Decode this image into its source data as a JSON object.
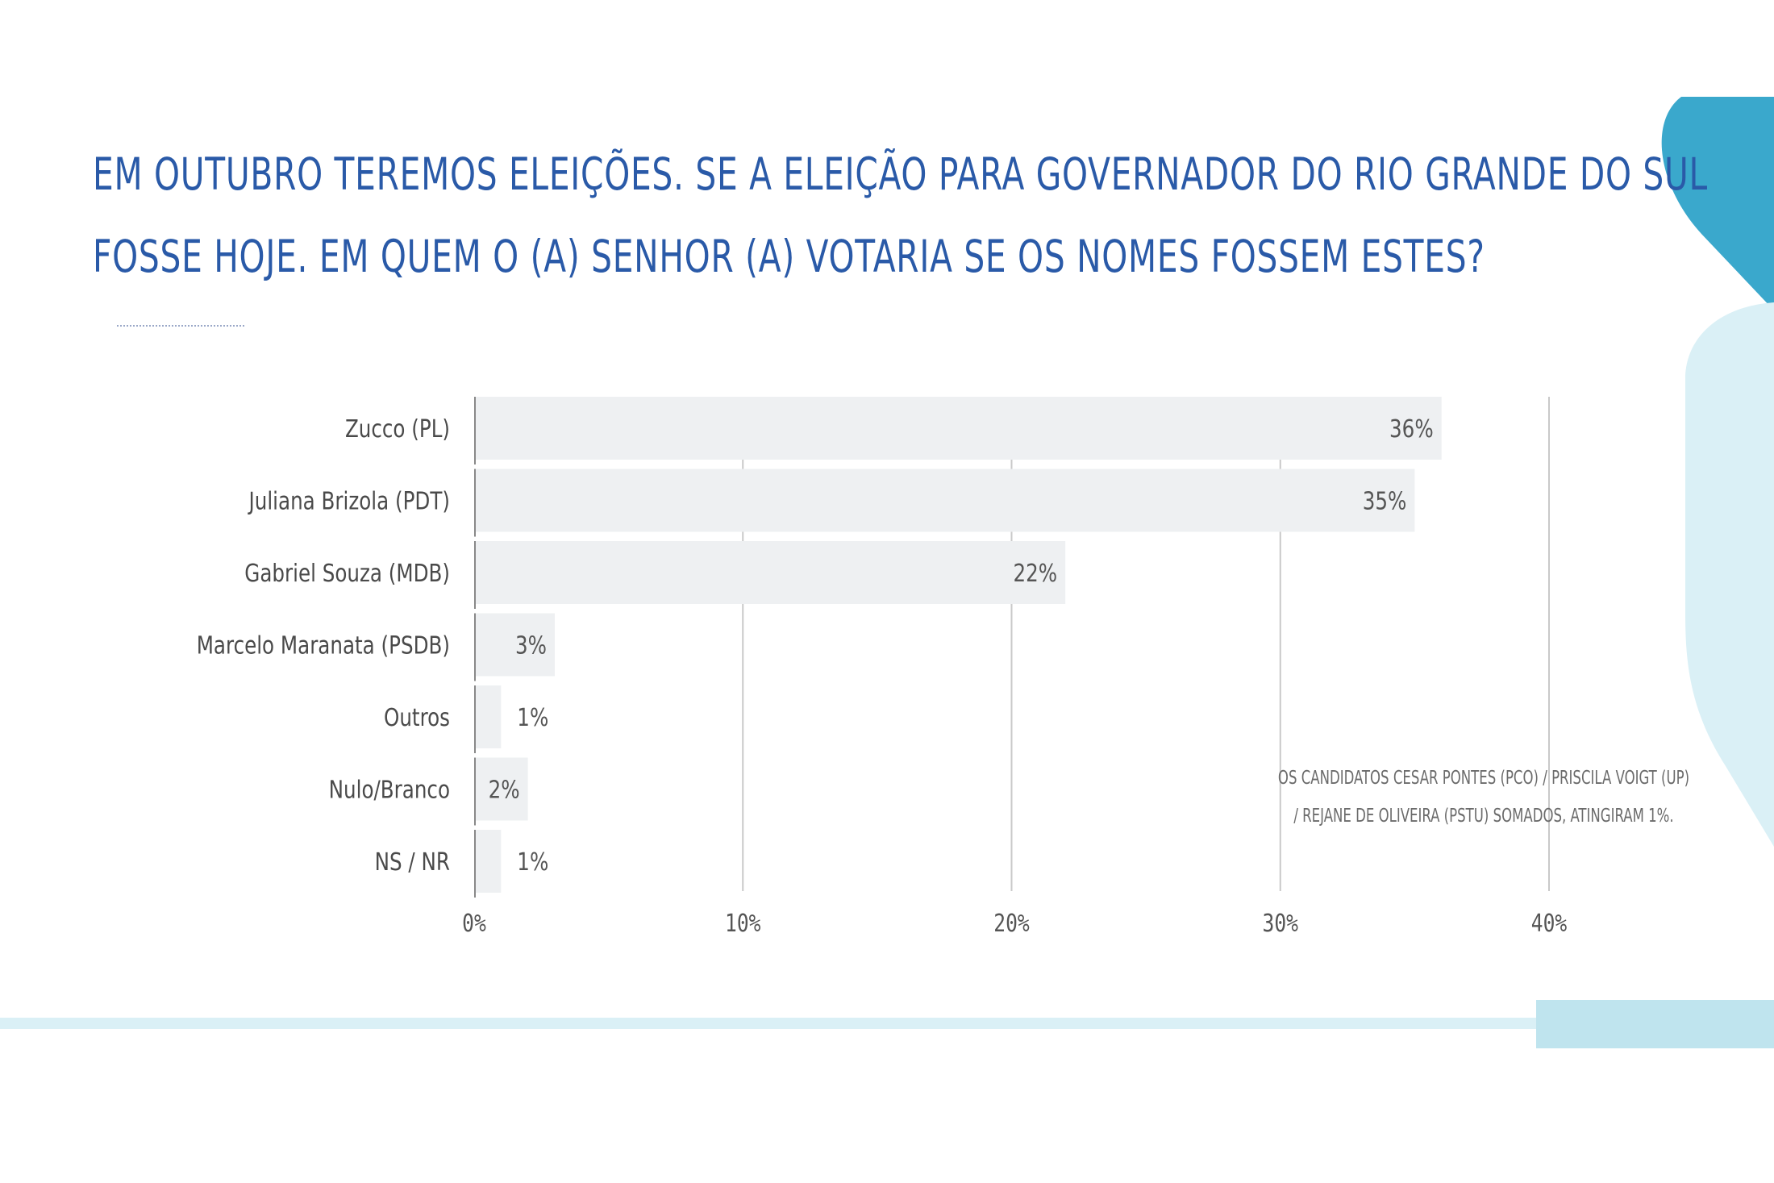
{
  "header": {
    "title_line1": "EM OUTUBRO TEREMOS ELEIÇÕES. SE A ELEIÇÃO PARA GOVERNADOR DO RIO GRANDE DO SUL",
    "title_line2": "FOSSE HOJE. EM QUEM O (A) SENHOR (A) VOTARIA SE OS NOMES FOSSEM ESTES?"
  },
  "note": {
    "text": "OS CANDIDATOS CESAR PONTES (PCO) / PRISCILA VOIGT (UP) / REJANE DE OLIVEIRA (PSTU) SOMADOS, ATINGIRAM 1%."
  },
  "colors": {
    "title": "#2a5aa8",
    "bar": "#eef0f2",
    "gridline": "#c9c9c9",
    "label": "#4a4a4a",
    "accent_dark": "#3aa8cc",
    "accent_light": "#daf0f6",
    "footer_band": "#bfe4ee"
  },
  "chart_data": {
    "type": "bar",
    "orientation": "horizontal",
    "categories": [
      "Zucco (PL)",
      "Juliana Brizola (PDT)",
      "Gabriel Souza (MDB)",
      "Marcelo Maranata (PSDB)",
      "Outros",
      "Nulo/Branco",
      "NS / NR"
    ],
    "values": [
      36,
      35,
      22,
      3,
      1,
      2,
      1
    ],
    "value_labels": [
      "36%",
      "35%",
      "22%",
      "3%",
      "1%",
      "2%",
      "1%"
    ],
    "xlim": [
      0,
      40
    ],
    "x_ticks": [
      0,
      10,
      20,
      30,
      40
    ],
    "x_tick_labels": [
      "0%",
      "10%",
      "20%",
      "30%",
      "40%"
    ],
    "grid": true,
    "legend": "none"
  }
}
